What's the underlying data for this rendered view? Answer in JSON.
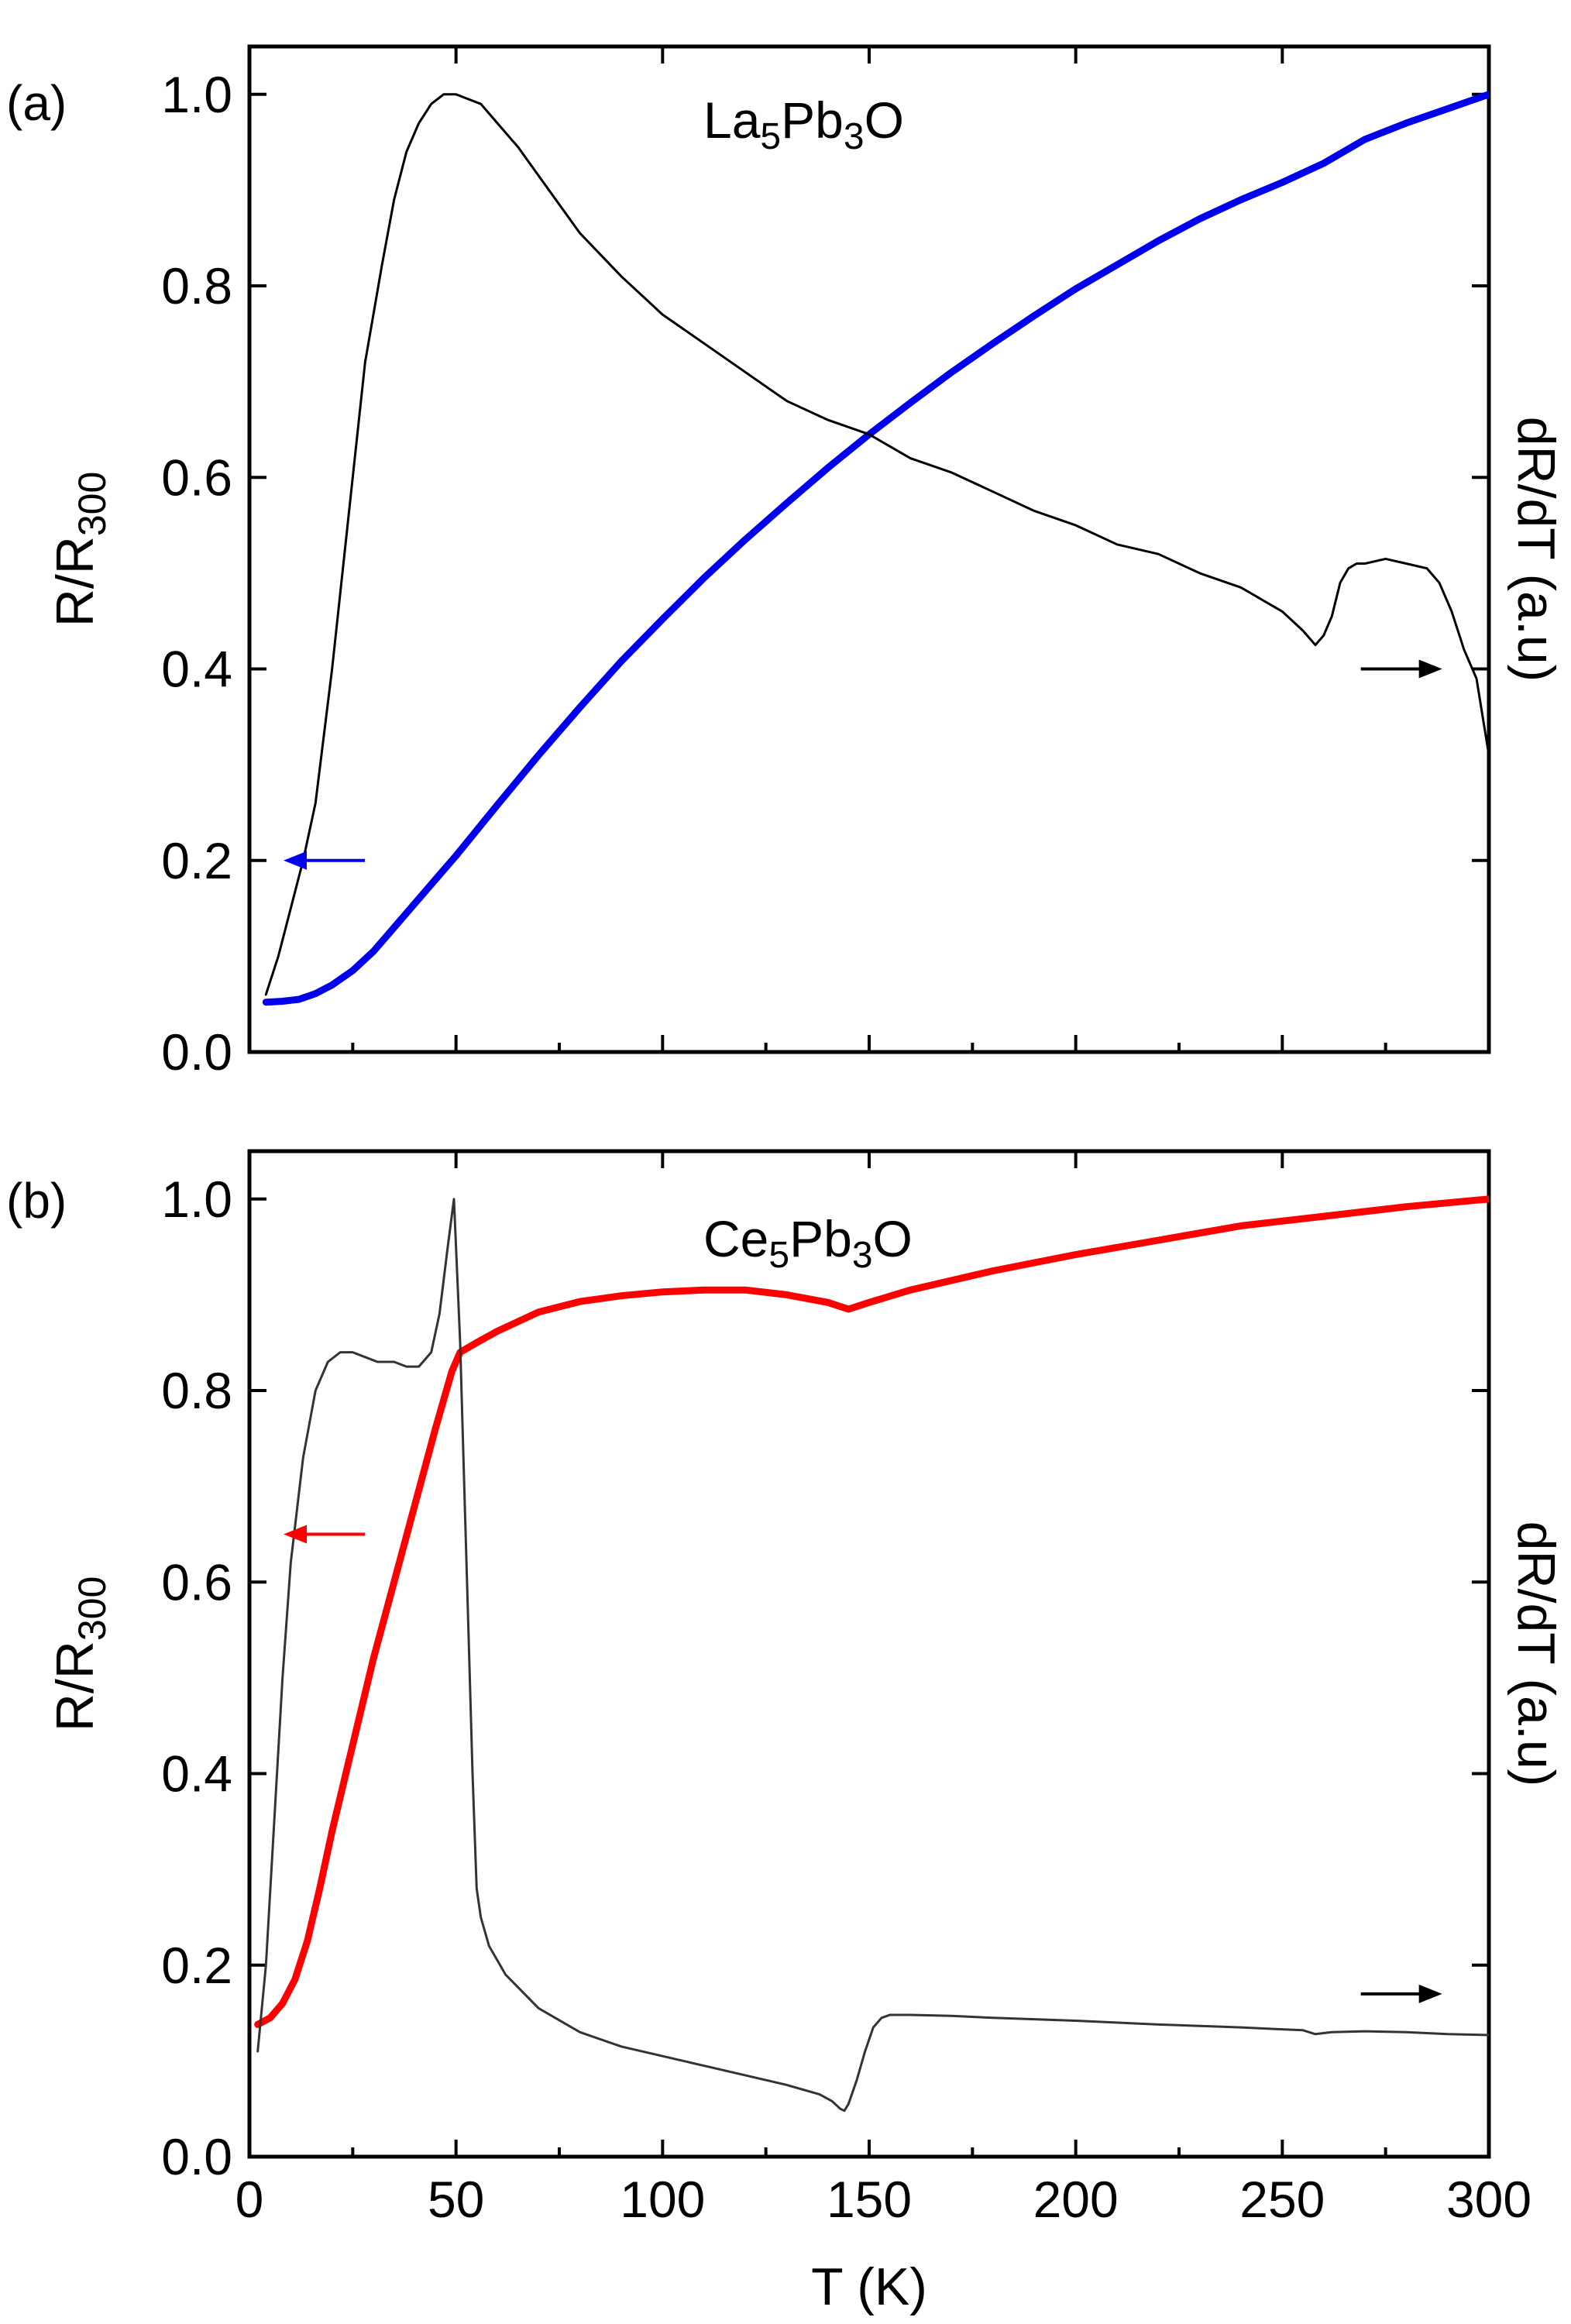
{
  "figure": {
    "x_axis_label": "T (K)",
    "x_ticks": [
      0,
      50,
      100,
      150,
      200,
      250,
      300
    ]
  },
  "chart_data": [
    {
      "type": "line",
      "panel_label": "(a)",
      "annotation": {
        "main": "La",
        "sub1": "5",
        "mid": "Pb",
        "sub2": "3",
        "end": "O"
      },
      "ylabel_left": {
        "main": "R/R",
        "sub": "300"
      },
      "ylabel_right": "dR/dT (a.u)",
      "xlim": [
        0,
        300
      ],
      "ylim": [
        0,
        1.05
      ],
      "y_ticks": [
        "0.0",
        "0.2",
        "0.4",
        "0.6",
        "0.8",
        "1.0"
      ],
      "arrow_left": {
        "color": "#0000ee",
        "x": 12,
        "y": 0.2
      },
      "arrow_right": {
        "color": "#000000",
        "x": 299,
        "y": 0.4
      },
      "series": [
        {
          "role": "R/R300 (left axis)",
          "color": "#0000ee",
          "width": 9,
          "x": [
            4,
            8,
            12,
            16,
            20,
            25,
            30,
            35,
            40,
            45,
            50,
            60,
            70,
            80,
            90,
            100,
            110,
            120,
            130,
            140,
            150,
            160,
            170,
            180,
            190,
            200,
            210,
            220,
            230,
            240,
            250,
            260,
            270,
            280,
            290,
            300
          ],
          "y": [
            0.052,
            0.053,
            0.055,
            0.061,
            0.07,
            0.085,
            0.105,
            0.13,
            0.155,
            0.18,
            0.205,
            0.258,
            0.31,
            0.36,
            0.408,
            0.452,
            0.495,
            0.535,
            0.573,
            0.61,
            0.645,
            0.678,
            0.71,
            0.74,
            0.769,
            0.797,
            0.822,
            0.847,
            0.87,
            0.89,
            0.908,
            0.928,
            0.953,
            0.97,
            0.985,
            1.0
          ]
        },
        {
          "role": "dR/dT (right axis)",
          "color": "#000000",
          "width": 3,
          "x": [
            4,
            7,
            10,
            13,
            16,
            20,
            24,
            28,
            32,
            35,
            38,
            41,
            44,
            47,
            50,
            53,
            56,
            60,
            65,
            70,
            75,
            80,
            90,
            100,
            110,
            120,
            130,
            140,
            150,
            160,
            170,
            180,
            190,
            200,
            210,
            220,
            230,
            240,
            250,
            255,
            258,
            260,
            262,
            264,
            266,
            268,
            270,
            275,
            280,
            285,
            288,
            291,
            294,
            297,
            300
          ],
          "y": [
            0.06,
            0.1,
            0.15,
            0.2,
            0.26,
            0.4,
            0.56,
            0.72,
            0.82,
            0.89,
            0.94,
            0.97,
            0.99,
            1.0,
            1.0,
            0.995,
            0.99,
            0.97,
            0.945,
            0.915,
            0.885,
            0.855,
            0.81,
            0.77,
            0.74,
            0.71,
            0.68,
            0.66,
            0.645,
            0.62,
            0.605,
            0.585,
            0.565,
            0.55,
            0.53,
            0.52,
            0.5,
            0.485,
            0.46,
            0.44,
            0.425,
            0.435,
            0.455,
            0.49,
            0.505,
            0.51,
            0.51,
            0.515,
            0.51,
            0.505,
            0.49,
            0.46,
            0.42,
            0.39,
            0.31
          ]
        }
      ]
    },
    {
      "type": "line",
      "panel_label": "(b)",
      "annotation": {
        "main": "Ce",
        "sub1": "5",
        "mid": "Pb",
        "sub2": "3",
        "end": "O"
      },
      "ylabel_left": {
        "main": "R/R",
        "sub": "300"
      },
      "ylabel_right": "dR/dT (a.u)",
      "xlim": [
        0,
        300
      ],
      "ylim": [
        0,
        1.05
      ],
      "y_ticks": [
        "0.0",
        "0.2",
        "0.4",
        "0.6",
        "0.8",
        "1.0"
      ],
      "arrow_left": {
        "color": "#ff0000",
        "x": 12,
        "y": 0.65
      },
      "arrow_right": {
        "color": "#000000",
        "x": 299,
        "y": 0.17
      },
      "series": [
        {
          "role": "R/R300 (left axis)",
          "color": "#ff0000",
          "width": 9,
          "x": [
            2,
            5,
            8,
            11,
            14,
            17,
            20,
            25,
            30,
            35,
            40,
            45,
            49,
            51,
            55,
            60,
            70,
            80,
            90,
            100,
            110,
            120,
            130,
            140,
            145,
            150,
            160,
            180,
            200,
            220,
            240,
            260,
            280,
            300
          ],
          "y": [
            0.138,
            0.145,
            0.16,
            0.185,
            0.225,
            0.28,
            0.34,
            0.43,
            0.52,
            0.6,
            0.68,
            0.76,
            0.82,
            0.84,
            0.85,
            0.862,
            0.882,
            0.893,
            0.899,
            0.903,
            0.905,
            0.905,
            0.9,
            0.892,
            0.885,
            0.892,
            0.905,
            0.925,
            0.942,
            0.957,
            0.972,
            0.982,
            0.992,
            1.0
          ]
        },
        {
          "role": "dR/dT (right axis)",
          "color": "#333333",
          "width": 3,
          "x": [
            2,
            4,
            6,
            8,
            10,
            13,
            16,
            19,
            22,
            25,
            28,
            31,
            35,
            38,
            41,
            44,
            46,
            48,
            49.5,
            51,
            52,
            53,
            54,
            55,
            56,
            58,
            62,
            70,
            80,
            90,
            100,
            110,
            120,
            130,
            138,
            141,
            143,
            144,
            145,
            147,
            149,
            151,
            153,
            155,
            160,
            170,
            180,
            200,
            220,
            240,
            250,
            255,
            258,
            262,
            270,
            280,
            290,
            300
          ],
          "y": [
            0.11,
            0.2,
            0.35,
            0.5,
            0.62,
            0.73,
            0.8,
            0.83,
            0.84,
            0.84,
            0.835,
            0.83,
            0.83,
            0.825,
            0.825,
            0.84,
            0.88,
            0.95,
            1.0,
            0.85,
            0.7,
            0.55,
            0.4,
            0.28,
            0.25,
            0.22,
            0.19,
            0.155,
            0.13,
            0.115,
            0.105,
            0.095,
            0.085,
            0.075,
            0.065,
            0.058,
            0.05,
            0.048,
            0.055,
            0.08,
            0.11,
            0.135,
            0.145,
            0.148,
            0.148,
            0.147,
            0.145,
            0.142,
            0.138,
            0.135,
            0.133,
            0.132,
            0.128,
            0.13,
            0.131,
            0.13,
            0.128,
            0.127
          ]
        }
      ]
    }
  ]
}
